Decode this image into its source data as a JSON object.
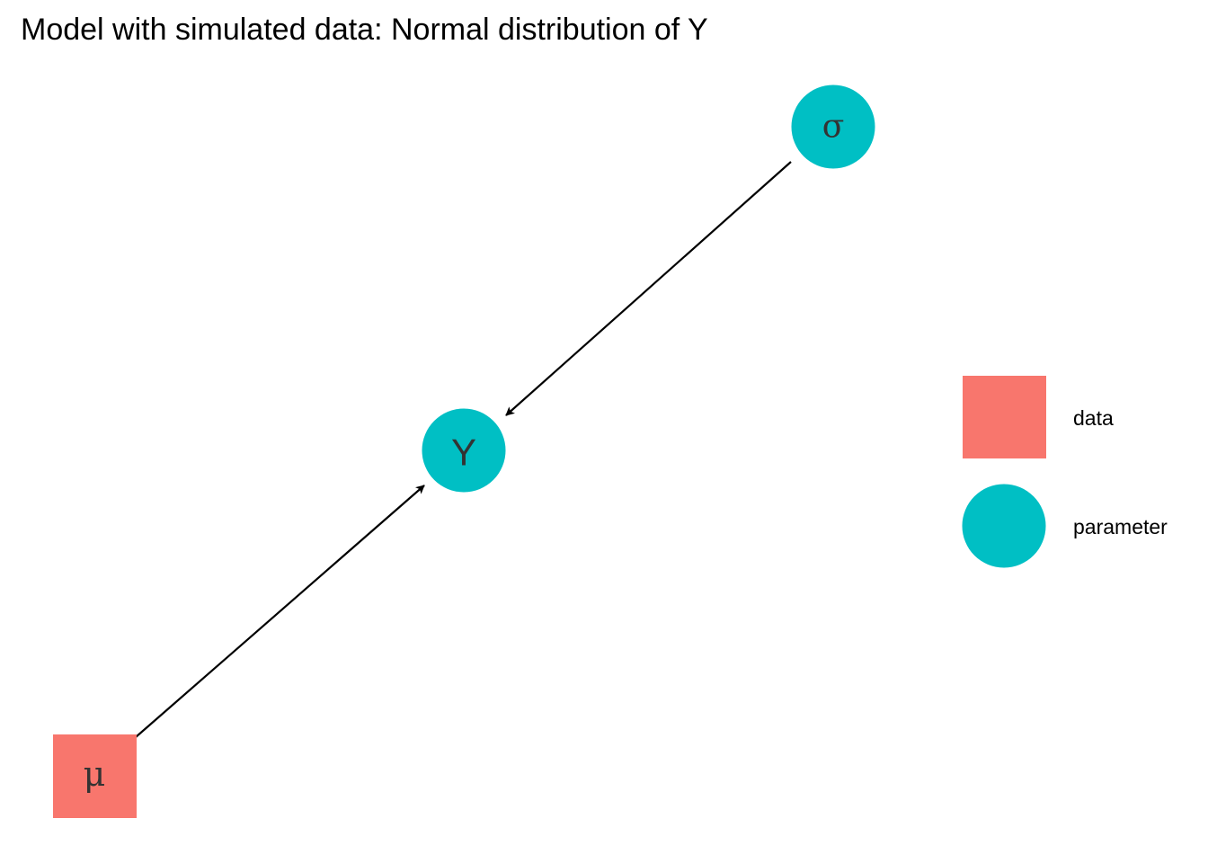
{
  "title": "Model with simulated data: Normal distribution of Y",
  "colors": {
    "data": "#F8766D",
    "parameter": "#00BFC4",
    "edge": "#000000",
    "label": "#333333"
  },
  "nodes": {
    "y": {
      "label": "Y",
      "type": "parameter",
      "shape": "circle"
    },
    "sigma": {
      "label": "σ",
      "type": "parameter",
      "shape": "circle"
    },
    "mu": {
      "label": "μ",
      "type": "data",
      "shape": "square"
    }
  },
  "edges": [
    {
      "from": "sigma",
      "to": "y"
    },
    {
      "from": "mu",
      "to": "y"
    }
  ],
  "legend": {
    "items": [
      {
        "label": "data",
        "shape": "square"
      },
      {
        "label": "parameter",
        "shape": "circle"
      }
    ]
  }
}
